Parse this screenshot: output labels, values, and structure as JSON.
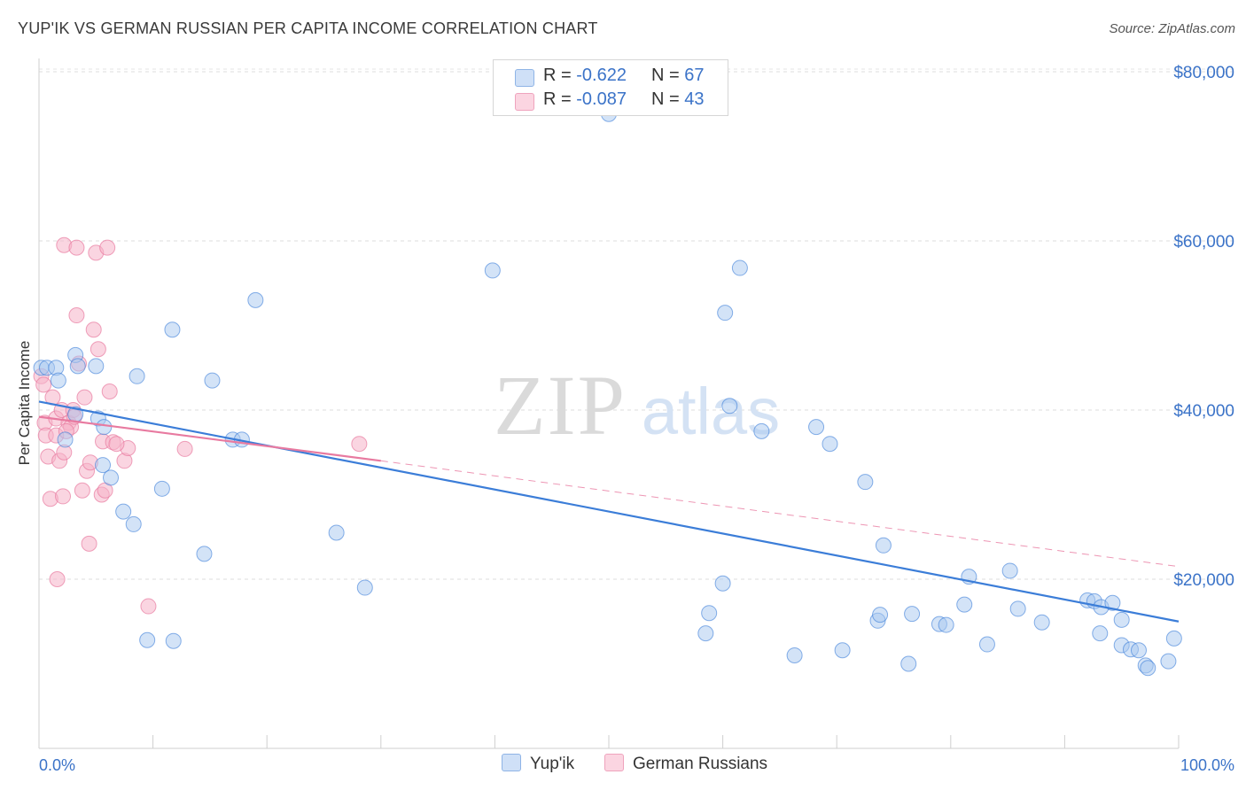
{
  "title": "YUP'IK VS GERMAN RUSSIAN PER CAPITA INCOME CORRELATION CHART",
  "source": "Source: ZipAtlas.com",
  "watermark": {
    "zip": "ZIP",
    "atlas": "atlas"
  },
  "legend_top": [
    {
      "r_label": "R =",
      "r_value": "-0.622",
      "n_label": "N =",
      "n_value": "67",
      "color": "#a8c8f0"
    },
    {
      "r_label": "R =",
      "r_value": "-0.087",
      "n_label": "N =",
      "n_value": "43",
      "color": "#f5b3c8"
    }
  ],
  "legend_bottom": [
    {
      "label": "Yup'ik",
      "color": "#a8c8f0"
    },
    {
      "label": "German Russians",
      "color": "#f5b3c8"
    }
  ],
  "chart_data": {
    "type": "scatter",
    "ylabel": "Per Capita Income",
    "xlabel": "",
    "x_tick_labels": [
      "0.0%",
      "100.0%"
    ],
    "y_tick_labels": [
      "$20,000",
      "$40,000",
      "$60,000",
      "$80,000"
    ],
    "y_ticks": [
      20000,
      40000,
      60000,
      80000
    ],
    "xlim": [
      0,
      100
    ],
    "ylim": [
      0,
      82000
    ],
    "grid": "horizontal dashed",
    "legend_placement": "top-center",
    "colors": {
      "yupik": "#3b7dd8",
      "yupik_fill": "#a8c8f0",
      "german": "#e87aa0",
      "german_fill": "#f5b3c8"
    },
    "series": [
      {
        "name": "Yup'ik",
        "trend": {
          "x": [
            0,
            100
          ],
          "y": [
            41000,
            15000
          ]
        },
        "points": [
          [
            0.2,
            45000
          ],
          [
            0.7,
            45000
          ],
          [
            1.5,
            45000
          ],
          [
            1.7,
            43500
          ],
          [
            2.3,
            36500
          ],
          [
            3.2,
            39500
          ],
          [
            3.2,
            46500
          ],
          [
            3.4,
            45200
          ],
          [
            5.0,
            45200
          ],
          [
            5.2,
            39000
          ],
          [
            5.7,
            38000
          ],
          [
            5.6,
            33500
          ],
          [
            6.3,
            32000
          ],
          [
            7.4,
            28000
          ],
          [
            8.3,
            26500
          ],
          [
            8.6,
            44000
          ],
          [
            9.5,
            12800
          ],
          [
            10.8,
            30700
          ],
          [
            11.7,
            49500
          ],
          [
            11.8,
            12700
          ],
          [
            14.5,
            23000
          ],
          [
            15.2,
            43500
          ],
          [
            17.0,
            36500
          ],
          [
            17.8,
            36500
          ],
          [
            19.0,
            53000
          ],
          [
            26.1,
            25500
          ],
          [
            28.6,
            19000
          ],
          [
            39.8,
            56500
          ],
          [
            50.0,
            75000
          ],
          [
            58.5,
            13600
          ],
          [
            58.8,
            16000
          ],
          [
            60.0,
            19500
          ],
          [
            60.2,
            51500
          ],
          [
            60.6,
            40500
          ],
          [
            61.5,
            56800
          ],
          [
            63.4,
            37500
          ],
          [
            66.3,
            11000
          ],
          [
            68.2,
            38000
          ],
          [
            69.4,
            36000
          ],
          [
            70.5,
            11600
          ],
          [
            72.5,
            31500
          ],
          [
            73.6,
            15100
          ],
          [
            73.8,
            15800
          ],
          [
            74.1,
            24000
          ],
          [
            76.3,
            10000
          ],
          [
            76.6,
            15900
          ],
          [
            79.0,
            14700
          ],
          [
            79.6,
            14600
          ],
          [
            81.2,
            17000
          ],
          [
            81.6,
            20300
          ],
          [
            83.2,
            12300
          ],
          [
            85.2,
            21000
          ],
          [
            85.9,
            16500
          ],
          [
            88.0,
            14900
          ],
          [
            92.0,
            17500
          ],
          [
            92.6,
            17400
          ],
          [
            93.1,
            13600
          ],
          [
            93.2,
            16700
          ],
          [
            94.2,
            17200
          ],
          [
            95.0,
            15200
          ],
          [
            95.0,
            12200
          ],
          [
            95.8,
            11700
          ],
          [
            96.5,
            11600
          ],
          [
            97.1,
            9800
          ],
          [
            97.3,
            9500
          ],
          [
            99.1,
            10300
          ],
          [
            99.6,
            13000
          ]
        ]
      },
      {
        "name": "German Russians",
        "trend": {
          "x": [
            0,
            30
          ],
          "y": [
            39200,
            34000
          ]
        },
        "trend_extended": {
          "x": [
            30,
            100
          ],
          "y": [
            34000,
            21500
          ]
        },
        "points": [
          [
            0.2,
            44000
          ],
          [
            0.4,
            43000
          ],
          [
            0.5,
            38500
          ],
          [
            0.6,
            37000
          ],
          [
            0.8,
            34500
          ],
          [
            1.0,
            29500
          ],
          [
            1.2,
            41500
          ],
          [
            1.5,
            37000
          ],
          [
            1.5,
            39000
          ],
          [
            1.6,
            20000
          ],
          [
            1.8,
            34000
          ],
          [
            2.0,
            40000
          ],
          [
            2.1,
            29800
          ],
          [
            2.2,
            35000
          ],
          [
            2.2,
            59500
          ],
          [
            2.6,
            38500
          ],
          [
            2.8,
            38000
          ],
          [
            3.0,
            40000
          ],
          [
            3.1,
            39200
          ],
          [
            3.3,
            59200
          ],
          [
            3.3,
            51200
          ],
          [
            3.5,
            45500
          ],
          [
            3.8,
            30500
          ],
          [
            4.0,
            41500
          ],
          [
            4.2,
            32800
          ],
          [
            4.4,
            24200
          ],
          [
            4.5,
            33800
          ],
          [
            4.8,
            49500
          ],
          [
            5.0,
            58600
          ],
          [
            5.2,
            47200
          ],
          [
            5.5,
            30000
          ],
          [
            5.6,
            36300
          ],
          [
            5.8,
            30500
          ],
          [
            6.0,
            59200
          ],
          [
            6.2,
            42200
          ],
          [
            6.5,
            36200
          ],
          [
            7.5,
            34000
          ],
          [
            7.8,
            35500
          ],
          [
            9.6,
            16800
          ],
          [
            12.8,
            35400
          ],
          [
            28.1,
            36000
          ],
          [
            6.8,
            36000
          ],
          [
            2.4,
            37500
          ]
        ]
      }
    ]
  }
}
